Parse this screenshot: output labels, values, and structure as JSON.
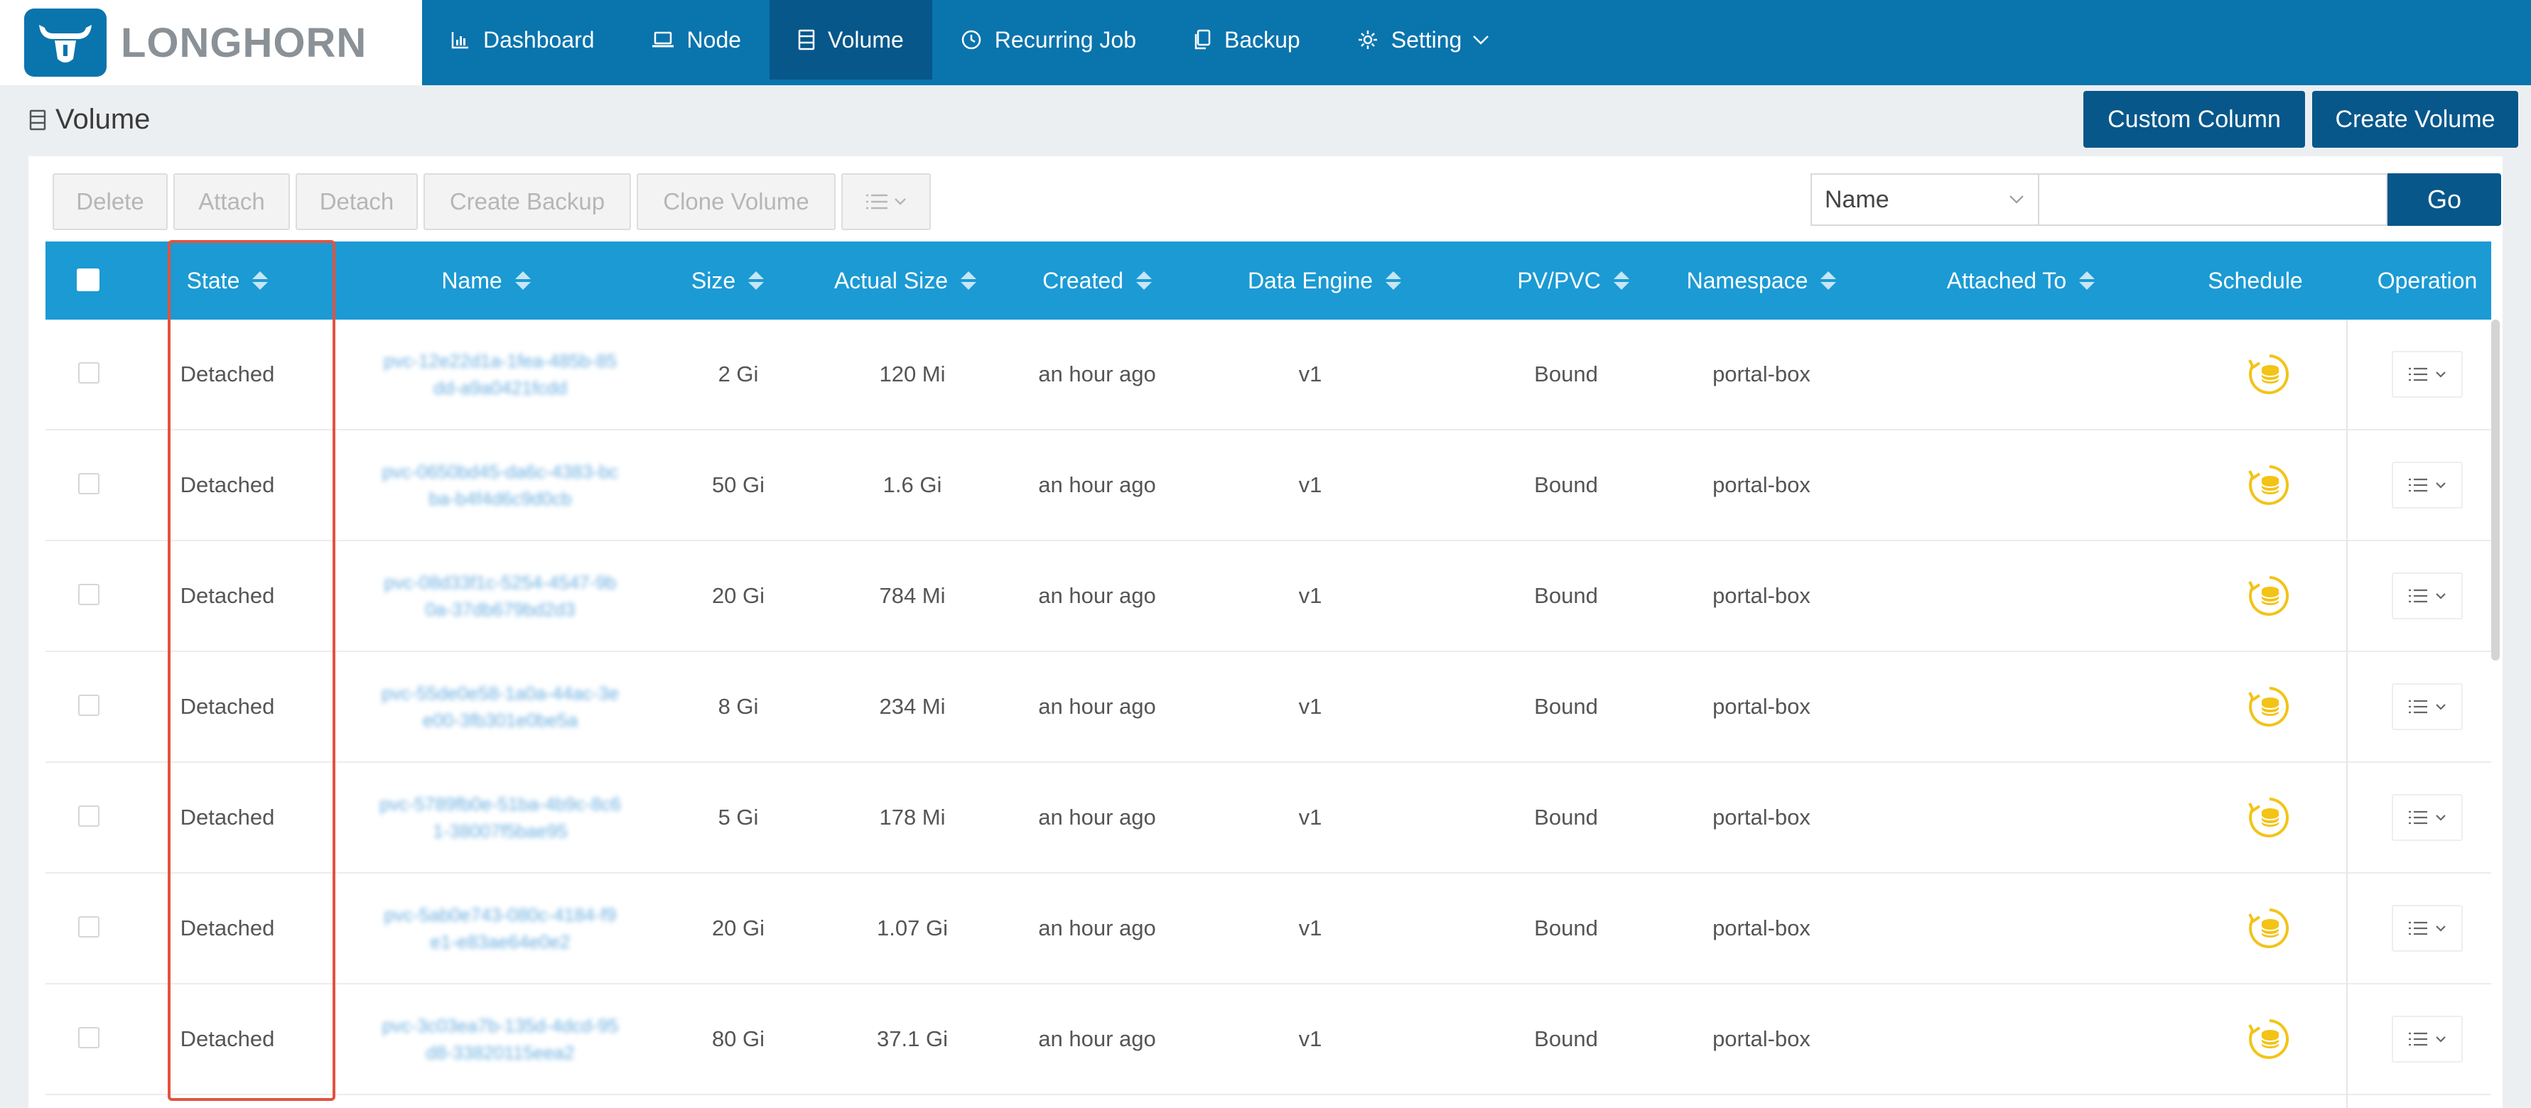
{
  "brand": {
    "name": "LONGHORN"
  },
  "nav": {
    "items": [
      {
        "label": "Dashboard",
        "icon": "bar-chart-icon"
      },
      {
        "label": "Node",
        "icon": "laptop-icon"
      },
      {
        "label": "Volume",
        "icon": "database-icon",
        "active": true
      },
      {
        "label": "Recurring Job",
        "icon": "clock-icon"
      },
      {
        "label": "Backup",
        "icon": "copy-icon"
      },
      {
        "label": "Setting",
        "icon": "gear-icon"
      }
    ]
  },
  "page": {
    "title": "Volume"
  },
  "header_buttons": {
    "custom_column": "Custom Column",
    "create_volume": "Create Volume"
  },
  "toolbar": {
    "delete": "Delete",
    "attach": "Attach",
    "detach": "Detach",
    "create_backup": "Create Backup",
    "clone_volume": "Clone Volume"
  },
  "search": {
    "field": "Name",
    "placeholder": "",
    "go": "Go"
  },
  "table": {
    "columns": {
      "state": "State",
      "name": "Name",
      "size": "Size",
      "actual_size": "Actual Size",
      "created": "Created",
      "data_engine": "Data Engine",
      "pv_pvc": "PV/PVC",
      "namespace": "Namespace",
      "attached_to": "Attached To",
      "schedule": "Schedule",
      "operation": "Operation"
    },
    "rows": [
      {
        "state": "Detached",
        "name": "pvc-12e22d1a-1fea-485b-85dd-a9a0421fcdd",
        "size": "2 Gi",
        "actual_size": "120 Mi",
        "created": "an hour ago",
        "data_engine": "v1",
        "pv_pvc": "Bound",
        "namespace": "portal-box",
        "attached_to": ""
      },
      {
        "state": "Detached",
        "name": "pvc-0650bd45-da6c-4383-bcba-b4f4d6c9d0cb",
        "size": "50 Gi",
        "actual_size": "1.6 Gi",
        "created": "an hour ago",
        "data_engine": "v1",
        "pv_pvc": "Bound",
        "namespace": "portal-box",
        "attached_to": ""
      },
      {
        "state": "Detached",
        "name": "pvc-08d33f1c-5254-4547-9b0a-37db679bd2d3",
        "size": "20 Gi",
        "actual_size": "784 Mi",
        "created": "an hour ago",
        "data_engine": "v1",
        "pv_pvc": "Bound",
        "namespace": "portal-box",
        "attached_to": ""
      },
      {
        "state": "Detached",
        "name": "pvc-55de0e58-1a0a-44ac-3ee00-3fb301e0be5a",
        "size": "8 Gi",
        "actual_size": "234 Mi",
        "created": "an hour ago",
        "data_engine": "v1",
        "pv_pvc": "Bound",
        "namespace": "portal-box",
        "attached_to": ""
      },
      {
        "state": "Detached",
        "name": "pvc-5789fb0e-51ba-4b9c-8c61-38007f5bae95",
        "size": "5 Gi",
        "actual_size": "178 Mi",
        "created": "an hour ago",
        "data_engine": "v1",
        "pv_pvc": "Bound",
        "namespace": "portal-box",
        "attached_to": ""
      },
      {
        "state": "Detached",
        "name": "pvc-5ab0e743-080c-4184-f9e1-e83ae64e0e2",
        "size": "20 Gi",
        "actual_size": "1.07 Gi",
        "created": "an hour ago",
        "data_engine": "v1",
        "pv_pvc": "Bound",
        "namespace": "portal-box",
        "attached_to": ""
      },
      {
        "state": "Detached",
        "name": "pvc-3c03ea7b-135d-4dcd-95d8-33820115eea2",
        "size": "80 Gi",
        "actual_size": "37.1 Gi",
        "created": "an hour ago",
        "data_engine": "v1",
        "pv_pvc": "Bound",
        "namespace": "portal-box",
        "attached_to": ""
      }
    ]
  },
  "colors": {
    "nav_bg": "#0a74ad",
    "nav_active": "#07578a",
    "table_header": "#1b9ad4",
    "schedule_icon": "#f3c316",
    "highlight": "#e2533e"
  }
}
